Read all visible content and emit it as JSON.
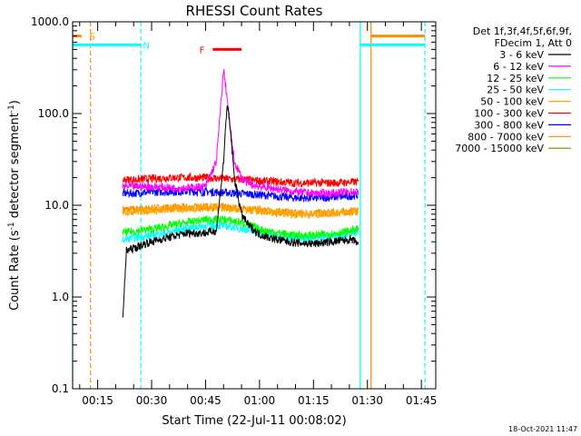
{
  "chart_data": {
    "type": "line",
    "title": "RHESSI Count Rates",
    "xlabel": "Start Time (22-Jul-11 00:08:02)",
    "ylabel": "Count Rate (s",
    "ylabel_sup": "-1",
    "ylabel_tail": " detector segment",
    "ylabel_sup2": "-1",
    "ylabel_close": ")",
    "y_scale": "log",
    "ylim": [
      0.1,
      1000
    ],
    "xlim": [
      "00:08:02",
      "01:49:00"
    ],
    "yticks": [
      {
        "value": 0.1,
        "label": "0.1"
      },
      {
        "value": 1,
        "label": "1.0"
      },
      {
        "value": 10,
        "label": "10.0"
      },
      {
        "value": 100,
        "label": "100.0"
      },
      {
        "value": 1000,
        "label": "1000.0"
      }
    ],
    "xticks": [
      {
        "value": "00:15",
        "label": "00:15"
      },
      {
        "value": "00:30",
        "label": "00:30"
      },
      {
        "value": "00:45",
        "label": "00:45"
      },
      {
        "value": "01:00",
        "label": "01:00"
      },
      {
        "value": "01:15",
        "label": "01:15"
      },
      {
        "value": "01:30",
        "label": "01:30"
      },
      {
        "value": "01:45",
        "label": "01:45"
      }
    ],
    "legend_header": [
      "Det 1f,3f,4f,5f,6f,9f,",
      "FDecim 1, Att 0"
    ],
    "legend_position": "right",
    "series": [
      {
        "name": "3 - 6 keV",
        "color": "#000000",
        "x": [
          "00:22:00",
          "00:23:00",
          "00:24:00",
          "00:26:00",
          "00:28:00",
          "00:30:00",
          "00:35:00",
          "00:40:00",
          "00:45:00",
          "00:48:00",
          "00:50:00",
          "00:51:00",
          "00:52:00",
          "00:53:00",
          "00:55:00",
          "00:57:00",
          "01:00:00",
          "01:05:00",
          "01:10:00",
          "01:15:00",
          "01:20:00",
          "01:25:00",
          "01:27:00",
          "01:27:30"
        ],
        "y": [
          0.6,
          3.2,
          3.3,
          3.5,
          3.8,
          4.0,
          4.5,
          5.0,
          5.0,
          5.3,
          30,
          130,
          60,
          20,
          8,
          6,
          4.8,
          4.2,
          3.9,
          3.8,
          4.0,
          4.2,
          4.0,
          3.5
        ]
      },
      {
        "name": "6 - 12 keV",
        "color": "#ff00ff",
        "x": [
          "00:22:00",
          "00:25:00",
          "00:30:00",
          "00:35:00",
          "00:40:00",
          "00:45:00",
          "00:48:00",
          "00:50:00",
          "00:51:00",
          "00:52:00",
          "00:53:00",
          "00:55:00",
          "00:57:00",
          "01:00:00",
          "01:05:00",
          "01:10:00",
          "01:15:00",
          "01:20:00",
          "01:25:00",
          "01:27:30"
        ],
        "y": [
          16,
          16,
          16,
          15.5,
          15.5,
          16,
          30,
          300,
          150,
          60,
          30,
          20,
          17,
          16,
          15,
          14,
          13.5,
          13.5,
          14,
          14
        ]
      },
      {
        "name": "12 - 25 keV",
        "color": "#00ff00",
        "x": [
          "00:22:00",
          "00:25:00",
          "00:30:00",
          "00:35:00",
          "00:40:00",
          "00:45:00",
          "00:50:00",
          "00:55:00",
          "01:00:00",
          "01:05:00",
          "01:10:00",
          "01:15:00",
          "01:20:00",
          "01:25:00",
          "01:27:30"
        ],
        "y": [
          5,
          5.2,
          5.5,
          6,
          6.5,
          7,
          7,
          6.5,
          5.5,
          5,
          4.7,
          4.7,
          4.9,
          5.2,
          5.5
        ]
      },
      {
        "name": "25 - 50 keV",
        "color": "#00ffff",
        "x": [
          "00:22:00",
          "00:25:00",
          "00:30:00",
          "00:35:00",
          "00:40:00",
          "00:45:00",
          "00:50:00",
          "00:55:00",
          "01:00:00",
          "01:05:00",
          "01:10:00",
          "01:15:00",
          "01:20:00",
          "01:25:00",
          "01:27:30"
        ],
        "y": [
          4.2,
          4.4,
          4.7,
          5.1,
          5.6,
          6,
          6,
          5.6,
          5,
          4.6,
          4.4,
          4.4,
          4.6,
          4.9,
          5.2
        ]
      },
      {
        "name": "50 - 100 keV",
        "color": "#ffa500",
        "x": [
          "00:22:00",
          "00:25:00",
          "00:30:00",
          "00:35:00",
          "00:40:00",
          "00:45:00",
          "00:50:00",
          "00:55:00",
          "01:00:00",
          "01:05:00",
          "01:10:00",
          "01:15:00",
          "01:20:00",
          "01:25:00",
          "01:27:30"
        ],
        "y": [
          8.5,
          8.6,
          8.8,
          9,
          9.2,
          9.5,
          9.4,
          9,
          8.6,
          8.2,
          8,
          8,
          8.2,
          8.4,
          8.6
        ]
      },
      {
        "name": "100 - 300 keV",
        "color": "#ff0000",
        "x": [
          "00:22:00",
          "00:25:00",
          "00:30:00",
          "00:35:00",
          "00:40:00",
          "00:45:00",
          "00:50:00",
          "00:55:00",
          "01:00:00",
          "01:05:00",
          "01:10:00",
          "01:15:00",
          "01:20:00",
          "01:25:00",
          "01:27:30"
        ],
        "y": [
          19,
          19,
          19.5,
          20,
          20,
          20,
          19.5,
          19,
          18.5,
          18,
          17.5,
          17.5,
          17.5,
          17.8,
          18
        ]
      },
      {
        "name": "300 - 800 keV",
        "color": "#0000ff",
        "x": [
          "00:22:00",
          "00:25:00",
          "00:30:00",
          "00:35:00",
          "00:40:00",
          "00:45:00",
          "00:50:00",
          "00:55:00",
          "01:00:00",
          "01:05:00",
          "01:10:00",
          "01:15:00",
          "01:20:00",
          "01:25:00",
          "01:27:30"
        ],
        "y": [
          13.5,
          13.5,
          14,
          14,
          14.2,
          14,
          13.8,
          13.4,
          13,
          12.5,
          12,
          12,
          12.2,
          12.6,
          13
        ]
      },
      {
        "name": "800 - 7000 keV",
        "color": "#ff8c00",
        "x": [
          "00:22:00",
          "00:25:00",
          "00:30:00",
          "00:35:00",
          "00:40:00",
          "00:45:00",
          "00:50:00",
          "00:55:00",
          "01:00:00",
          "01:05:00",
          "01:10:00",
          "01:15:00",
          "01:20:00",
          "01:25:00",
          "01:27:30"
        ],
        "y": [
          9,
          9,
          9.2,
          9.4,
          9.5,
          9.6,
          9.5,
          9.2,
          8.8,
          8.5,
          8.3,
          8.2,
          8.3,
          8.5,
          8.8
        ]
      },
      {
        "name": "7000 - 15000 keV",
        "color": "#808000",
        "x": [],
        "y": []
      }
    ],
    "vertical_markers": [
      {
        "x": "00:08:02",
        "color": "#00ffff",
        "style": "solid"
      },
      {
        "x": "00:13:00",
        "color": "#ff8c00",
        "style": "dashed"
      },
      {
        "x": "00:27:00",
        "color": "#00ffff",
        "style": "dashed"
      },
      {
        "x": "01:28:00",
        "color": "#00ffff",
        "style": "solid"
      },
      {
        "x": "01:31:00",
        "color": "#ff8c00",
        "style": "solid"
      },
      {
        "x": "01:46:00",
        "color": "#00ffff",
        "style": "dashed"
      }
    ],
    "bars": [
      {
        "label": "S",
        "color": "#ff8c00",
        "y": 700,
        "x0": "00:08:02",
        "x1": "00:10:30",
        "label_x": "00:13:30"
      },
      {
        "label": "N",
        "color": "#00ffff",
        "y": 560,
        "x0": "00:08:02",
        "x1": "00:27:00",
        "label_x": "00:28:30"
      },
      {
        "label": "F",
        "color": "#ff0000",
        "y": 500,
        "x0": "00:47:00",
        "x1": "00:55:00",
        "label_x": "00:44:00"
      },
      {
        "label": "",
        "color": "#ff8c00",
        "y": 700,
        "x0": "01:31:00",
        "x1": "01:46:00",
        "label_x": ""
      },
      {
        "label": "",
        "color": "#00ffff",
        "y": 560,
        "x0": "01:28:00",
        "x1": "01:46:00",
        "label_x": ""
      }
    ],
    "footer": "18-Oct-2021 11:47"
  }
}
